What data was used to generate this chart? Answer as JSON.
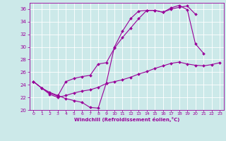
{
  "xlabel": "Windchill (Refroidissement éolien,°C)",
  "bg_color": "#cce9e9",
  "line_color": "#990099",
  "grid_color": "#ffffff",
  "xlim": [
    -0.5,
    23.5
  ],
  "ylim": [
    20,
    37
  ],
  "xticks": [
    0,
    1,
    2,
    3,
    4,
    5,
    6,
    7,
    8,
    9,
    10,
    11,
    12,
    13,
    14,
    15,
    16,
    17,
    18,
    19,
    20,
    21,
    22,
    23
  ],
  "yticks": [
    20,
    22,
    24,
    26,
    28,
    30,
    32,
    34,
    36
  ],
  "line1_x": [
    0,
    1,
    2,
    3,
    4,
    5,
    6,
    7,
    8,
    9,
    10,
    11,
    12,
    13,
    14,
    15,
    16,
    17,
    18,
    19,
    20,
    21
  ],
  "line1_y": [
    24.5,
    23.5,
    22.8,
    22.3,
    21.8,
    21.5,
    21.2,
    20.4,
    20.3,
    24.3,
    30.0,
    32.5,
    34.5,
    35.7,
    35.8,
    35.8,
    35.5,
    36.2,
    36.6,
    35.9,
    30.5,
    29.0
  ],
  "line2_x": [
    0,
    1,
    2,
    3,
    4,
    5,
    6,
    7,
    8,
    9,
    10,
    11,
    12,
    13,
    14,
    15,
    16,
    17,
    18,
    19,
    20
  ],
  "line2_y": [
    24.5,
    23.5,
    22.7,
    22.2,
    24.5,
    25.0,
    25.3,
    25.5,
    27.3,
    27.5,
    29.8,
    31.5,
    33.0,
    34.5,
    35.8,
    35.8,
    35.5,
    36.0,
    36.3,
    36.5,
    35.2
  ],
  "line3_x": [
    0,
    1,
    2,
    3,
    4,
    5,
    6,
    7,
    8,
    9,
    10,
    11,
    12,
    13,
    14,
    15,
    16,
    17,
    18,
    19,
    20,
    21,
    22,
    23
  ],
  "line3_y": [
    24.5,
    23.5,
    22.5,
    22.0,
    22.3,
    22.7,
    23.0,
    23.2,
    23.6,
    24.2,
    24.5,
    24.8,
    25.2,
    25.7,
    26.1,
    26.6,
    27.0,
    27.4,
    27.6,
    27.3,
    27.1,
    27.0,
    27.2,
    27.5
  ]
}
